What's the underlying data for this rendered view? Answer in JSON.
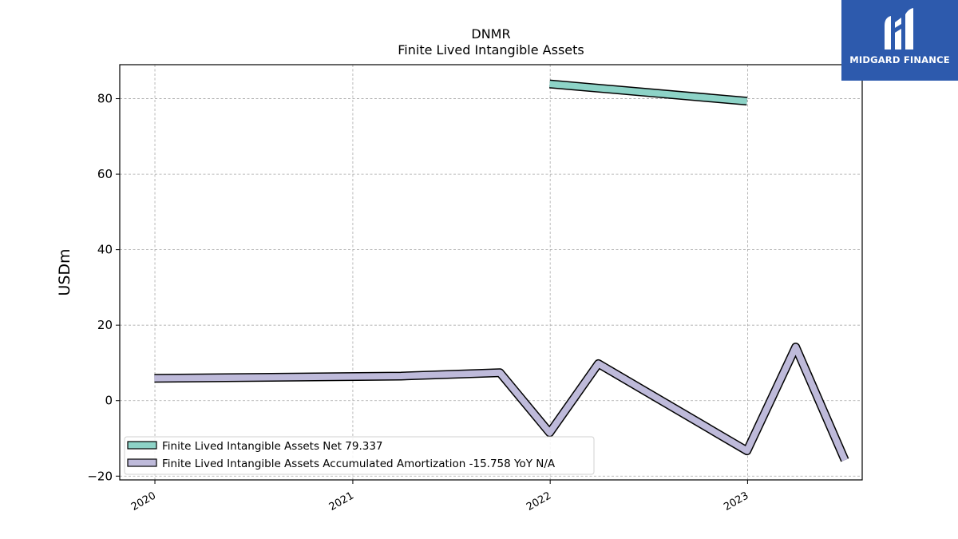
{
  "chart_data": {
    "type": "line",
    "title": "DNMR",
    "subtitle": "Finite Lived Intangible Assets",
    "ylabel": "USDm",
    "xlabel": "",
    "ylim": [
      -21,
      89
    ],
    "xlim": [
      "2019-10-28",
      "2023-08-01"
    ],
    "y_ticks": [
      -20,
      0,
      20,
      40,
      60,
      80
    ],
    "x_ticks": [
      {
        "date": "2020-01-01",
        "label": "2020"
      },
      {
        "date": "2021-01-01",
        "label": "2021"
      },
      {
        "date": "2022-01-01",
        "label": "2022"
      },
      {
        "date": "2023-01-01",
        "label": "2023"
      }
    ],
    "grid": true,
    "legend_position": "lower-left",
    "series": [
      {
        "name": "Finite Lived Intangible Assets Net",
        "legend_label": "Finite Lived Intangible Assets Net  79.337",
        "color": "#8dd3c7",
        "points": [
          {
            "x": "2021-12-31",
            "y": 83.9
          },
          {
            "x": "2022-12-31",
            "y": 79.337
          }
        ]
      },
      {
        "name": "Finite Lived Intangible Assets Accumulated Amortization",
        "legend_label": "Finite Lived Intangible Assets Accumulated Amortization  -15.758 YoY N/A",
        "color": "#bebada",
        "points": [
          {
            "x": "2019-12-31",
            "y": 5.9
          },
          {
            "x": "2021-03-31",
            "y": 6.5
          },
          {
            "x": "2021-09-30",
            "y": 7.4
          },
          {
            "x": "2021-12-31",
            "y": -8.5
          },
          {
            "x": "2022-03-31",
            "y": 9.8
          },
          {
            "x": "2022-12-31",
            "y": -13.3
          },
          {
            "x": "2023-03-31",
            "y": 14.2
          },
          {
            "x": "2023-06-30",
            "y": -15.758
          }
        ]
      }
    ]
  },
  "logo": {
    "text": "MIDGARD FINANCE"
  }
}
